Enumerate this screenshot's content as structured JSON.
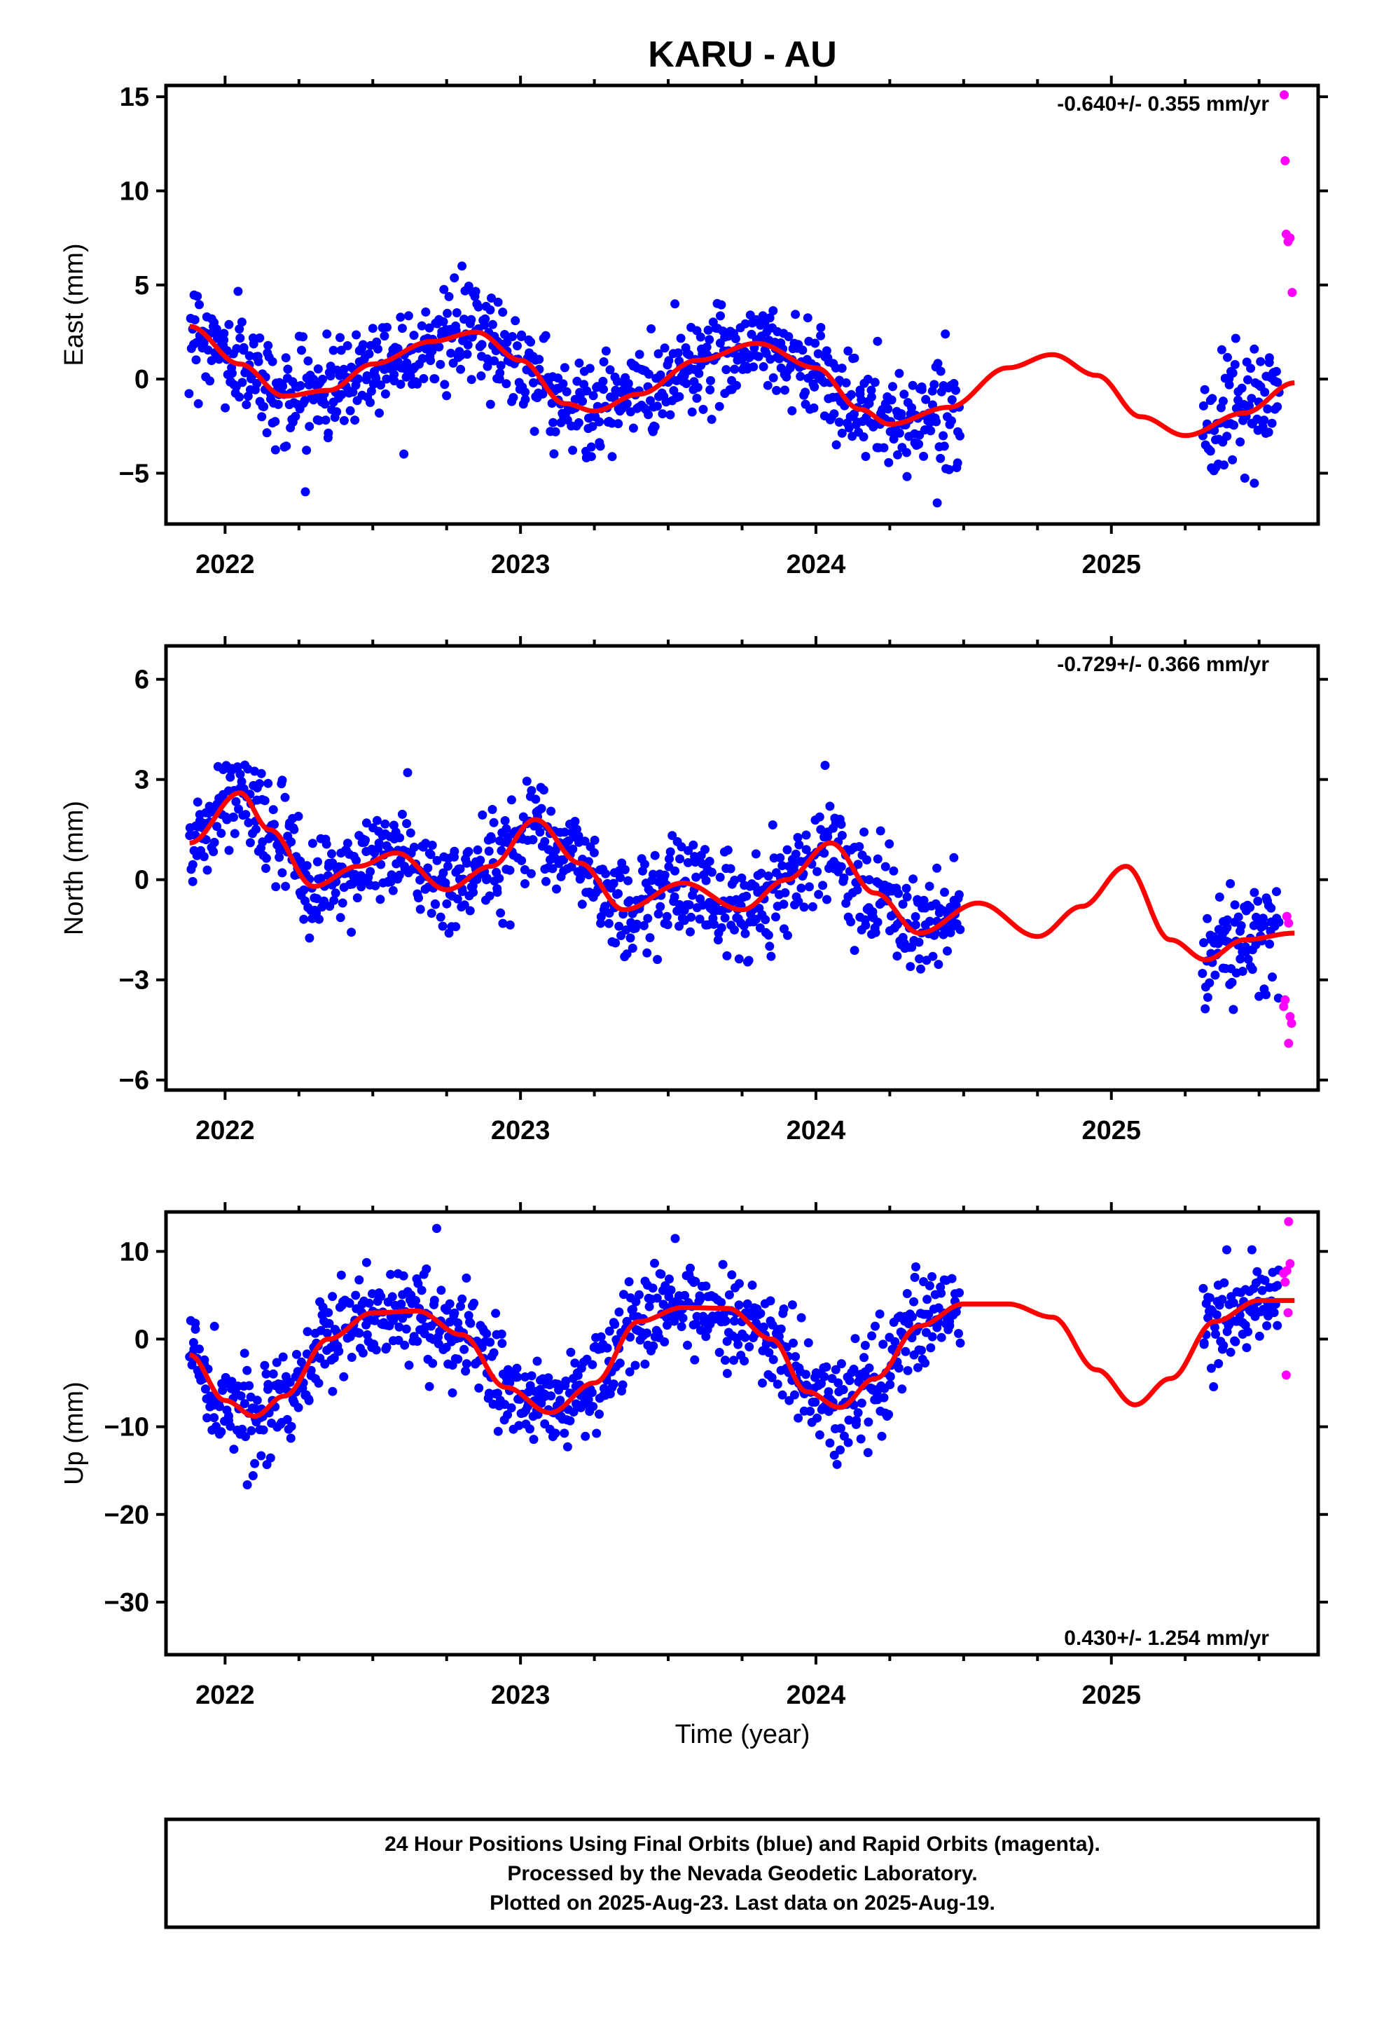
{
  "title": "KARU - AU",
  "xlabel": "Time (year)",
  "footer": {
    "line1": "24 Hour Positions Using Final Orbits (blue) and Rapid Orbits (magenta).",
    "line2": "Processed by the Nevada Geodetic Laboratory.",
    "line3": "Plotted on 2025-Aug-23. Last data on 2025-Aug-19."
  },
  "colors": {
    "final": "#0000ff",
    "rapid": "#ff00ff",
    "model": "#ff0000",
    "frame": "#000000"
  },
  "chart_data": [
    {
      "type": "scatter",
      "ylabel": "East (mm)",
      "rate": "-0.640+/- 0.355 mm/yr",
      "xlim": [
        2021.8,
        2025.7
      ],
      "ylim": [
        -7.7,
        15.6
      ],
      "yticks": [
        -5,
        0,
        5,
        10,
        15
      ],
      "ytick_labels": [
        "−5",
        "0",
        "5",
        "10",
        "15"
      ],
      "xticks": [
        2022,
        2023,
        2024,
        2025
      ],
      "xtick_labels": [
        "2022",
        "2023",
        "2024",
        "2025"
      ],
      "final_segments": [
        [
          2021.88,
          2024.49
        ],
        [
          2025.31,
          2025.57
        ]
      ],
      "model": {
        "x": [
          2021.88,
          2022.05,
          2022.2,
          2022.35,
          2022.5,
          2022.7,
          2022.85,
          2023.0,
          2023.15,
          2023.25,
          2023.4,
          2023.6,
          2023.8,
          2024.0,
          2024.15,
          2024.25,
          2024.45,
          2024.65,
          2024.8,
          2024.95,
          2025.1,
          2025.25,
          2025.45,
          2025.62
        ],
        "y": [
          2.8,
          0.8,
          -0.9,
          -0.6,
          0.8,
          2.0,
          2.5,
          1.0,
          -1.3,
          -1.7,
          -0.8,
          1.0,
          1.9,
          0.6,
          -1.6,
          -2.4,
          -1.5,
          0.6,
          1.3,
          0.2,
          -2.0,
          -3.0,
          -1.8,
          -0.2
        ]
      },
      "rapid_points": [
        {
          "x": 2025.585,
          "y": 15.1
        },
        {
          "x": 2025.588,
          "y": 11.6
        },
        {
          "x": 2025.592,
          "y": 7.7
        },
        {
          "x": 2025.598,
          "y": 7.3
        },
        {
          "x": 2025.605,
          "y": 7.5
        },
        {
          "x": 2025.612,
          "y": 4.6
        }
      ]
    },
    {
      "type": "scatter",
      "ylabel": "North (mm)",
      "rate": "-0.729+/- 0.366 mm/yr",
      "xlim": [
        2021.8,
        2025.7
      ],
      "ylim": [
        -6.3,
        7.0
      ],
      "yticks": [
        -6,
        -3,
        0,
        3,
        6
      ],
      "ytick_labels": [
        "−6",
        "−3",
        "0",
        "3",
        "6"
      ],
      "xticks": [
        2022,
        2023,
        2024,
        2025
      ],
      "xtick_labels": [
        "2022",
        "2023",
        "2024",
        "2025"
      ],
      "final_segments": [
        [
          2021.88,
          2024.49
        ],
        [
          2025.31,
          2025.57
        ]
      ],
      "model": {
        "x": [
          2021.88,
          2022.05,
          2022.15,
          2022.3,
          2022.45,
          2022.58,
          2022.75,
          2022.9,
          2023.05,
          2023.2,
          2023.35,
          2023.55,
          2023.75,
          2023.9,
          2024.05,
          2024.2,
          2024.35,
          2024.55,
          2024.75,
          2024.9,
          2025.05,
          2025.2,
          2025.32,
          2025.45,
          2025.62
        ],
        "y": [
          1.1,
          2.6,
          1.5,
          -0.2,
          0.4,
          0.8,
          -0.3,
          0.4,
          1.8,
          0.5,
          -0.9,
          -0.1,
          -0.9,
          0.0,
          1.1,
          -0.4,
          -1.6,
          -0.7,
          -1.7,
          -0.8,
          0.4,
          -1.8,
          -2.4,
          -1.8,
          -1.6
        ]
      },
      "rapid_points": [
        {
          "x": 2025.583,
          "y": -3.8
        },
        {
          "x": 2025.588,
          "y": -3.6
        },
        {
          "x": 2025.594,
          "y": -1.1
        },
        {
          "x": 2025.6,
          "y": -1.3
        },
        {
          "x": 2025.605,
          "y": -4.1
        },
        {
          "x": 2025.61,
          "y": -4.3
        },
        {
          "x": 2025.6,
          "y": -4.9
        }
      ]
    },
    {
      "type": "scatter",
      "ylabel": "Up (mm)",
      "rate": "0.430+/- 1.254 mm/yr",
      "xlim": [
        2021.8,
        2025.7
      ],
      "ylim": [
        -36,
        14.5
      ],
      "yticks": [
        -30,
        -20,
        -10,
        0,
        10
      ],
      "ytick_labels": [
        "−30",
        "−20",
        "−10",
        "0",
        "10"
      ],
      "xticks": [
        2022,
        2023,
        2024,
        2025
      ],
      "xtick_labels": [
        "2022",
        "2023",
        "2024",
        "2025"
      ],
      "final_segments": [
        [
          2021.88,
          2024.49
        ],
        [
          2025.31,
          2025.57
        ]
      ],
      "model": {
        "x": [
          2021.88,
          2022.0,
          2022.1,
          2022.2,
          2022.35,
          2022.5,
          2022.65,
          2022.8,
          2022.95,
          2023.1,
          2023.25,
          2023.4,
          2023.55,
          2023.7,
          2023.85,
          2023.97,
          2024.08,
          2024.2,
          2024.35,
          2024.5,
          2024.65,
          2024.8,
          2024.95,
          2025.08,
          2025.2,
          2025.35,
          2025.5,
          2025.62
        ],
        "y": [
          -1.8,
          -7.0,
          -8.8,
          -6.5,
          0.0,
          3.0,
          3.2,
          0.5,
          -5.5,
          -8.4,
          -5.0,
          2.0,
          3.6,
          3.5,
          0.0,
          -6.0,
          -7.8,
          -4.5,
          1.5,
          4.0,
          4.0,
          2.5,
          -3.5,
          -7.5,
          -4.5,
          2.0,
          4.4,
          4.4
        ]
      },
      "rapid_points": [
        {
          "x": 2025.583,
          "y": 7.5
        },
        {
          "x": 2025.588,
          "y": 6.5
        },
        {
          "x": 2025.594,
          "y": 7.8
        },
        {
          "x": 2025.6,
          "y": 13.4
        },
        {
          "x": 2025.605,
          "y": 8.6
        },
        {
          "x": 2025.598,
          "y": 3.0
        },
        {
          "x": 2025.592,
          "y": -4.1
        }
      ]
    }
  ]
}
